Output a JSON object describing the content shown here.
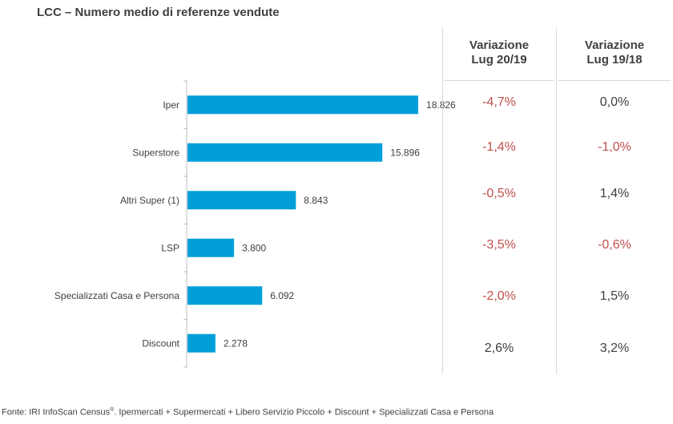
{
  "title": "LCC – Numero medio di referenze vendute",
  "chart_data": {
    "type": "bar",
    "orientation": "horizontal",
    "categories": [
      "Iper",
      "Superstore",
      "Altri Super (1)",
      "LSP",
      "Specializzati Casa e Persona",
      "Discount"
    ],
    "values": [
      18826,
      15896,
      8843,
      3800,
      6092,
      2278
    ],
    "value_labels": [
      "18.826",
      "15.896",
      "8.843",
      "3.800",
      "6.092",
      "2.278"
    ],
    "xlim": [
      0,
      20000
    ],
    "bar_color": "#009fda",
    "grid": false
  },
  "table": {
    "columns": [
      {
        "line1": "Variazione",
        "line2": "Lug 20/19"
      },
      {
        "line1": "Variazione",
        "line2": "Lug 19/18"
      }
    ],
    "rows": [
      [
        "-4,7%",
        "0,0%"
      ],
      [
        "-1,4%",
        "-1,0%"
      ],
      [
        "-0,5%",
        "1,4%"
      ],
      [
        "-3,5%",
        "-0,6%"
      ],
      [
        "-2,0%",
        "1,5%"
      ],
      [
        "2,6%",
        "3,2%"
      ]
    ],
    "negative_color": "#c0504d",
    "positive_color": "#404040"
  },
  "source": {
    "prefix": "Fonte: IRI InfoScan Census",
    "mark": "®",
    "suffix": ". Ipermercati + Supermercati + Libero Servizio Piccolo + Discount + Specializzati Casa e Persona"
  }
}
